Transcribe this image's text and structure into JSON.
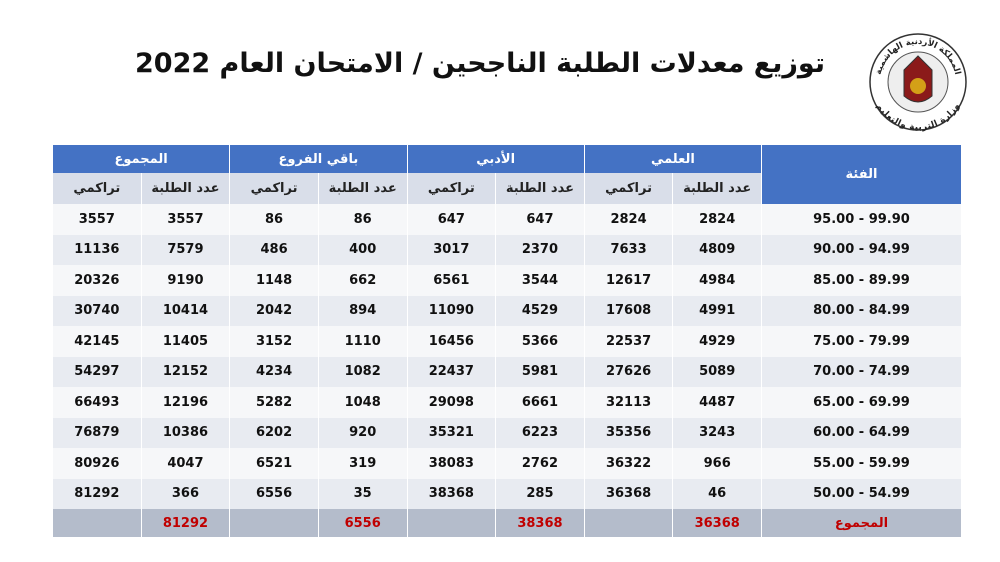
{
  "header": {
    "title": "توزيع معدلات الطلبة الناجحين / الامتحان العام 2022",
    "logo": {
      "top_text": "المملكة الأردنية الهاشمية",
      "bottom_text": "وزارة التربية والتعليم"
    }
  },
  "table": {
    "category_header": "الفئة",
    "groups": [
      "العلمي",
      "الأدبي",
      "باقي الفروع",
      "المجموع"
    ],
    "subheaders": [
      "عدد الطلبة",
      "تراكمي"
    ],
    "rows": [
      [
        "99.90 - 95.00",
        2824,
        2824,
        647,
        647,
        86,
        86,
        3557,
        3557
      ],
      [
        "94.99 - 90.00",
        4809,
        7633,
        2370,
        3017,
        400,
        486,
        7579,
        11136
      ],
      [
        "89.99 - 85.00",
        4984,
        12617,
        3544,
        6561,
        662,
        1148,
        9190,
        20326
      ],
      [
        "84.99 - 80.00",
        4991,
        17608,
        4529,
        11090,
        894,
        2042,
        10414,
        30740
      ],
      [
        "79.99 - 75.00",
        4929,
        22537,
        5366,
        16456,
        1110,
        3152,
        11405,
        42145
      ],
      [
        "74.99 - 70.00",
        5089,
        27626,
        5981,
        22437,
        1082,
        4234,
        12152,
        54297
      ],
      [
        "69.99 - 65.00",
        4487,
        32113,
        6661,
        29098,
        1048,
        5282,
        12196,
        66493
      ],
      [
        "64.99 - 60.00",
        3243,
        35356,
        6223,
        35321,
        920,
        6202,
        10386,
        76879
      ],
      [
        "59.99 - 55.00",
        966,
        36322,
        2762,
        38083,
        319,
        6521,
        4047,
        80926
      ],
      [
        "54.99 - 50.00",
        46,
        36368,
        285,
        38368,
        35,
        6556,
        366,
        81292
      ]
    ],
    "total": [
      "المجموع",
      36368,
      null,
      38368,
      null,
      6556,
      null,
      81292,
      null
    ]
  }
}
